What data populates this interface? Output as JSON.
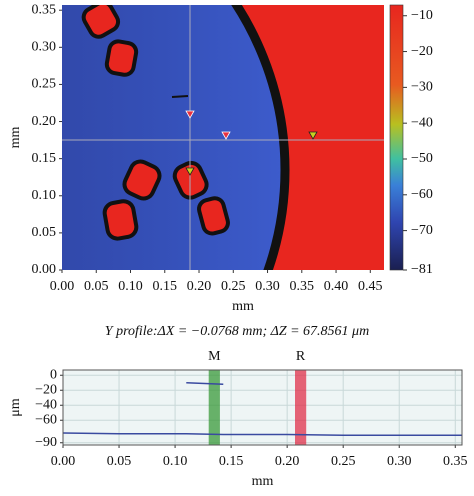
{
  "chart_data": [
    {
      "type": "heatmap",
      "xlabel": "mm",
      "ylabel": "mm",
      "xlim": [
        0,
        0.47
      ],
      "ylim": [
        0,
        0.357
      ],
      "xticks": [
        {
          "value": 0,
          "label": "0.00"
        },
        {
          "value": 0.05,
          "label": "0.05"
        },
        {
          "value": 0.1,
          "label": "0.10"
        },
        {
          "value": 0.15,
          "label": "0.15"
        },
        {
          "value": 0.2,
          "label": "0.20"
        },
        {
          "value": 0.25,
          "label": "0.25"
        },
        {
          "value": 0.3,
          "label": "0.30"
        },
        {
          "value": 0.35,
          "label": "0.35"
        },
        {
          "value": 0.4,
          "label": "0.40"
        },
        {
          "value": 0.45,
          "label": "0.45"
        }
      ],
      "yticks": [
        {
          "value": 0,
          "label": "0.00"
        },
        {
          "value": 0.05,
          "label": "0.05"
        },
        {
          "value": 0.1,
          "label": "0.10"
        },
        {
          "value": 0.15,
          "label": "0.15"
        },
        {
          "value": 0.2,
          "label": "0.20"
        },
        {
          "value": 0.25,
          "label": "0.25"
        },
        {
          "value": 0.3,
          "label": "0.30"
        },
        {
          "value": 0.35,
          "label": "0.35"
        }
      ],
      "colorbar": {
        "lim": [
          -81,
          -7
        ],
        "ticks": [
          {
            "value": -10,
            "label": "−10"
          },
          {
            "value": -20,
            "label": "−20"
          },
          {
            "value": -30,
            "label": "−30"
          },
          {
            "value": -40,
            "label": "−40"
          },
          {
            "value": -50,
            "label": "−50"
          },
          {
            "value": -60,
            "label": "−60"
          },
          {
            "value": -70,
            "label": "−70"
          },
          {
            "value": -81,
            "label": "−81"
          }
        ]
      }
    },
    {
      "type": "line",
      "title": "Y profile:ΔX = −0.0768 mm; ΔZ = 67.8561 μm",
      "xlabel": "mm",
      "ylabel": "μm",
      "xlim": [
        0,
        0.356
      ],
      "ylim": [
        -93,
        7
      ],
      "grid": true,
      "xticks": [
        {
          "value": 0,
          "label": "0.00"
        },
        {
          "value": 0.05,
          "label": "0.05"
        },
        {
          "value": 0.1,
          "label": "0.10"
        },
        {
          "value": 0.15,
          "label": "0.15"
        },
        {
          "value": 0.2,
          "label": "0.20"
        },
        {
          "value": 0.25,
          "label": "0.25"
        },
        {
          "value": 0.3,
          "label": "0.30"
        },
        {
          "value": 0.35,
          "label": "0.35"
        }
      ],
      "yticks": [
        0,
        {
          "value": -20,
          "label": "−20"
        },
        {
          "value": -40,
          "label": "−40"
        },
        {
          "value": -60,
          "label": "−60"
        },
        {
          "value": -90,
          "label": "−90"
        }
      ],
      "x": [
        0,
        0.05,
        0.1,
        0.11,
        0.143,
        0.15,
        0.2,
        0.25,
        0.3,
        0.356
      ],
      "series": [
        {
          "color": "#3a4aa0",
          "values": [
            -77,
            -78,
            -78,
            -78,
            -79,
            -79,
            -79,
            -80,
            -80,
            -80
          ]
        },
        {
          "color": "#3a4aa0",
          "values": [
            null,
            null,
            null,
            -10,
            -12,
            null,
            null,
            null,
            null,
            null
          ]
        }
      ],
      "markers": [
        {
          "label": "M",
          "x": [
            0.13,
            0.14
          ],
          "color": "#3a9a3a"
        },
        {
          "label": "R",
          "x": [
            0.207,
            0.217
          ],
          "color": "#e0304a"
        }
      ]
    }
  ]
}
